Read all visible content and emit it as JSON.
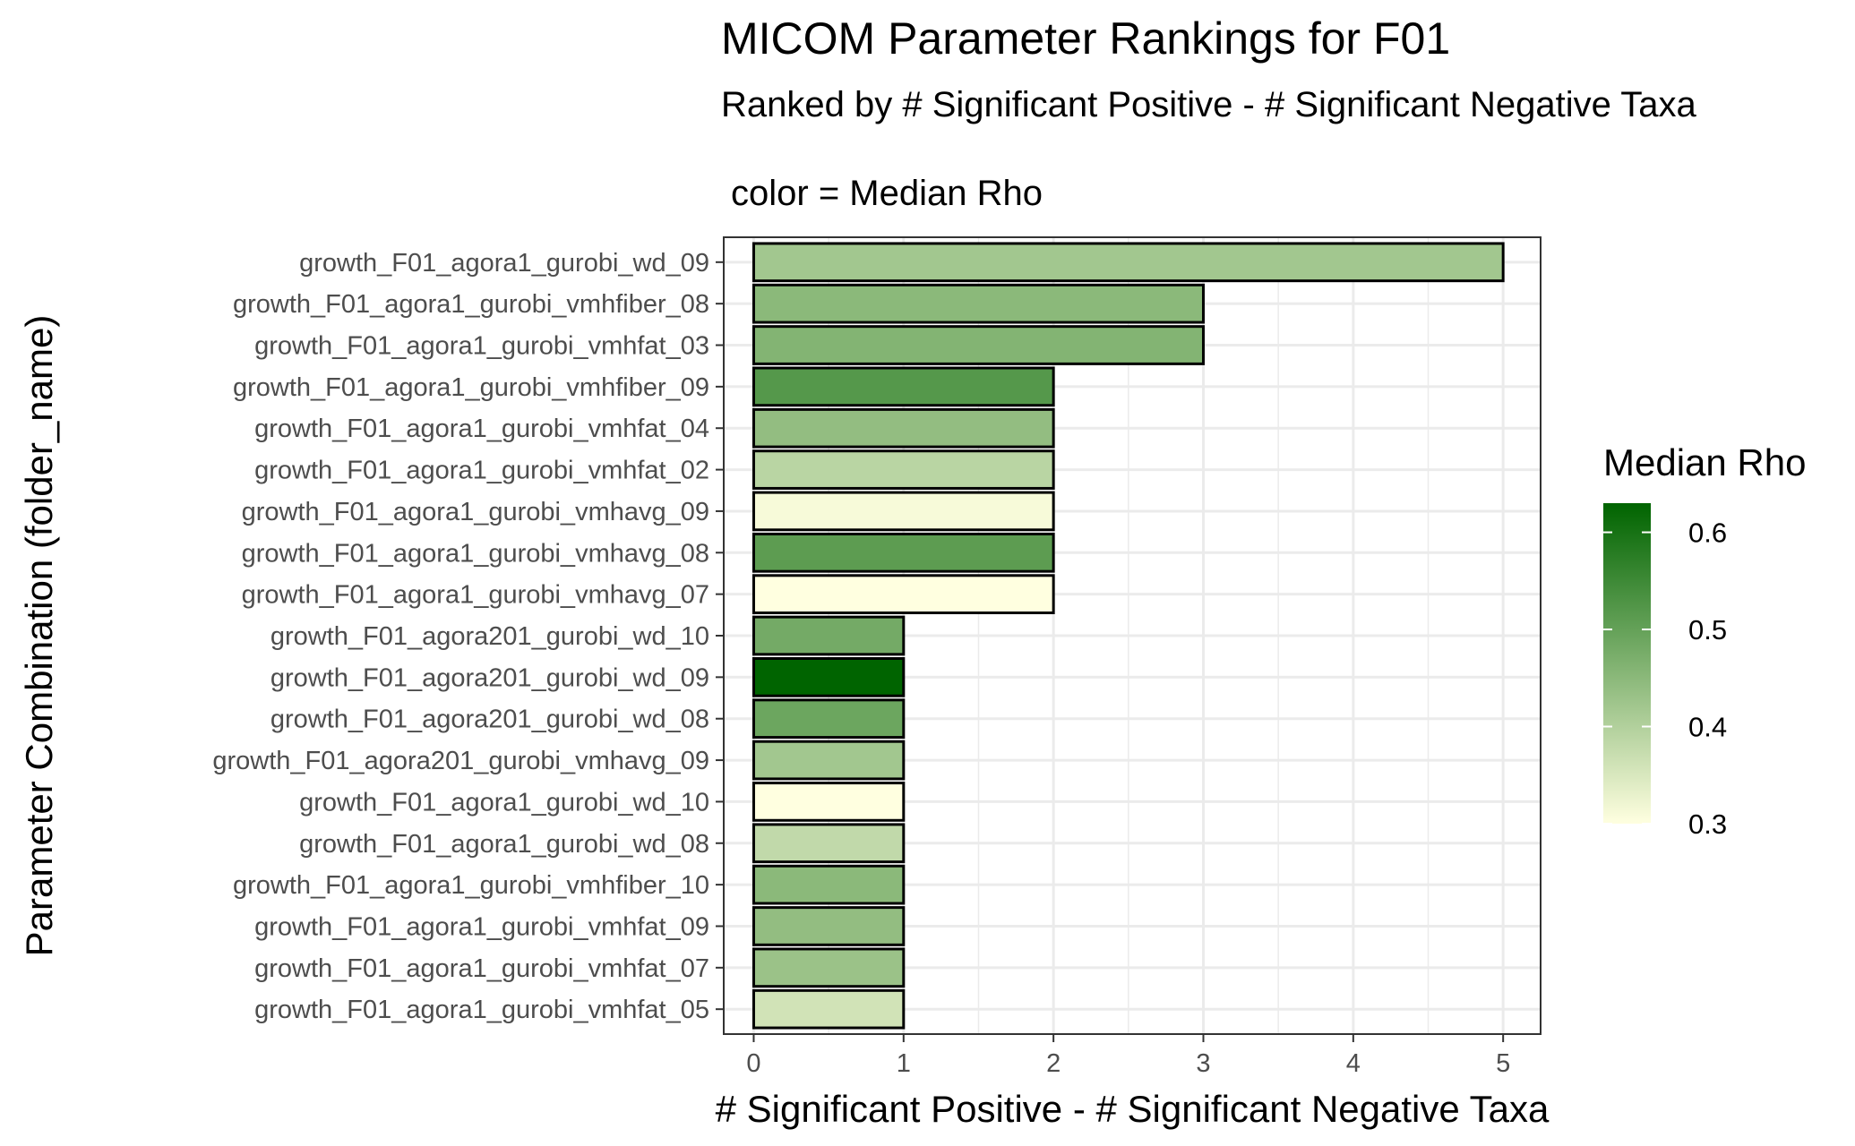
{
  "chart_data": {
    "type": "bar",
    "orientation": "horizontal",
    "title": "MICOM Parameter Rankings for F01",
    "subtitle": "Ranked by # Significant Positive - # Significant Negative Taxa",
    "plot_caption": "color = Median Rho",
    "xlabel": "# Significant Positive - # Significant Negative Taxa",
    "ylabel": "Parameter Combination (folder_name)",
    "xlim": [
      -0.2,
      5.25
    ],
    "xticks": [
      "0",
      "1",
      "2",
      "3",
      "4",
      "5"
    ],
    "grid": true,
    "legend": {
      "title": "Median Rho",
      "placement": "right",
      "range": [
        0.3,
        0.63
      ],
      "ticks": [
        "0.6",
        "0.5",
        "0.4",
        "0.3"
      ],
      "low_color": "#ffffe0",
      "high_color": "#006400"
    },
    "categories": [
      "growth_F01_agora1_gurobi_wd_09",
      "growth_F01_agora1_gurobi_vmhfiber_08",
      "growth_F01_agora1_gurobi_vmhfat_03",
      "growth_F01_agora1_gurobi_vmhfiber_09",
      "growth_F01_agora1_gurobi_vmhfat_04",
      "growth_F01_agora1_gurobi_vmhfat_02",
      "growth_F01_agora1_gurobi_vmhavg_09",
      "growth_F01_agora1_gurobi_vmhavg_08",
      "growth_F01_agora1_gurobi_vmhavg_07",
      "growth_F01_agora201_gurobi_wd_10",
      "growth_F01_agora201_gurobi_wd_09",
      "growth_F01_agora201_gurobi_wd_08",
      "growth_F01_agora201_gurobi_vmhavg_09",
      "growth_F01_agora1_gurobi_wd_10",
      "growth_F01_agora1_gurobi_wd_08",
      "growth_F01_agora1_gurobi_vmhfiber_10",
      "growth_F01_agora1_gurobi_vmhfat_09",
      "growth_F01_agora1_gurobi_vmhfat_07",
      "growth_F01_agora1_gurobi_vmhfat_05"
    ],
    "values": [
      5,
      3,
      3,
      2,
      2,
      2,
      2,
      2,
      2,
      1,
      1,
      1,
      1,
      1,
      1,
      1,
      1,
      1,
      1
    ],
    "median_rho": [
      0.42,
      0.45,
      0.46,
      0.52,
      0.44,
      0.39,
      0.31,
      0.51,
      0.3,
      0.48,
      0.63,
      0.49,
      0.42,
      0.3,
      0.38,
      0.45,
      0.44,
      0.43,
      0.36
    ]
  }
}
